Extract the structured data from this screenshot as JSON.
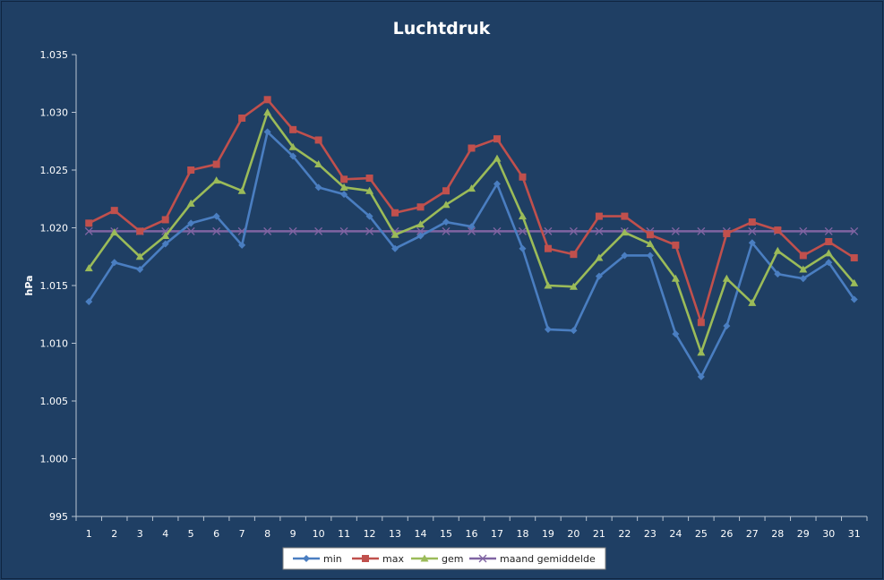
{
  "chart_data": {
    "type": "line",
    "title": "Luchtdruk",
    "xlabel": "",
    "ylabel": "hPa",
    "ylim": [
      995,
      1035
    ],
    "y_ticks": [
      "995",
      "1.000",
      "1.005",
      "1.010",
      "1.015",
      "1.020",
      "1.025",
      "1.030",
      "1.035"
    ],
    "y_tick_values": [
      995,
      1000,
      1005,
      1010,
      1015,
      1020,
      1025,
      1030,
      1035
    ],
    "categories": [
      "1",
      "2",
      "3",
      "4",
      "5",
      "6",
      "7",
      "8",
      "9",
      "10",
      "11",
      "12",
      "13",
      "14",
      "15",
      "16",
      "17",
      "18",
      "19",
      "20",
      "21",
      "22",
      "23",
      "24",
      "25",
      "26",
      "27",
      "28",
      "29",
      "30",
      "31"
    ],
    "grid": false,
    "legend_position": "bottom",
    "series": [
      {
        "name": "min",
        "color": "#4a7ec1",
        "marker": "diamond",
        "values": [
          1013.6,
          1017.0,
          1016.4,
          1018.6,
          1020.4,
          1021.0,
          1018.5,
          1028.3,
          1026.2,
          1023.5,
          1022.9,
          1021.0,
          1018.2,
          1019.3,
          1020.5,
          1020.1,
          1023.8,
          1018.2,
          1011.2,
          1011.1,
          1015.8,
          1017.6,
          1017.6,
          1010.8,
          1007.1,
          1011.5,
          1018.7,
          1016.0,
          1015.6,
          1017.0,
          1013.8
        ]
      },
      {
        "name": "max",
        "color": "#c0504d",
        "marker": "square",
        "values": [
          1020.4,
          1021.5,
          1019.7,
          1020.7,
          1025.0,
          1025.5,
          1029.5,
          1031.1,
          1028.5,
          1027.6,
          1024.2,
          1024.3,
          1021.3,
          1021.8,
          1023.2,
          1026.9,
          1027.7,
          1024.4,
          1018.2,
          1017.7,
          1021.0,
          1021.0,
          1019.4,
          1018.5,
          1011.8,
          1019.5,
          1020.5,
          1019.8,
          1017.6,
          1018.8,
          1017.4
        ]
      },
      {
        "name": "gem",
        "color": "#9bbb59",
        "marker": "triangle",
        "values": [
          1016.5,
          1019.6,
          1017.5,
          1019.3,
          1022.1,
          1024.1,
          1023.2,
          1030.0,
          1027.0,
          1025.5,
          1023.5,
          1023.2,
          1019.4,
          1020.3,
          1022.0,
          1023.4,
          1026.0,
          1021.0,
          1015.0,
          1014.9,
          1017.4,
          1019.6,
          1018.6,
          1015.6,
          1009.2,
          1015.6,
          1013.5,
          1018.0,
          1016.4,
          1017.8,
          1015.2
        ]
      },
      {
        "name": "maand gemiddelde",
        "color": "#8064a2",
        "marker": "x",
        "values": [
          1019.7,
          1019.7,
          1019.7,
          1019.7,
          1019.7,
          1019.7,
          1019.7,
          1019.7,
          1019.7,
          1019.7,
          1019.7,
          1019.7,
          1019.7,
          1019.7,
          1019.7,
          1019.7,
          1019.7,
          1019.7,
          1019.7,
          1019.7,
          1019.7,
          1019.7,
          1019.7,
          1019.7,
          1019.7,
          1019.7,
          1019.7,
          1019.7,
          1019.7,
          1019.7,
          1019.7
        ]
      }
    ]
  }
}
